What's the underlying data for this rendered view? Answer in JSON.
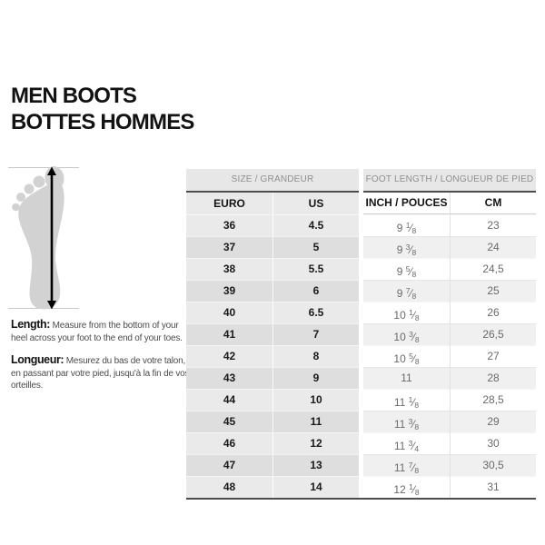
{
  "title": {
    "line1": "MEN BOOTS",
    "line2": "BOTTES HOMMES"
  },
  "chart_data": {
    "type": "table",
    "title": "MEN BOOTS / BOTTES HOMMES",
    "group_headers": [
      "SIZE / GRANDEUR",
      "FOOT LENGTH / LONGUEUR DE PIED"
    ],
    "columns": [
      "EURO",
      "US",
      "INCH / POUCES",
      "CM"
    ],
    "rows": [
      [
        "36",
        "4.5",
        "9 1/8",
        "23"
      ],
      [
        "37",
        "5",
        "9 3/8",
        "24"
      ],
      [
        "38",
        "5.5",
        "9 5/8",
        "24,5"
      ],
      [
        "39",
        "6",
        "9 7/8",
        "25"
      ],
      [
        "40",
        "6.5",
        "10 1/8",
        "26"
      ],
      [
        "41",
        "7",
        "10 3/8",
        "26,5"
      ],
      [
        "42",
        "8",
        "10 5/8",
        "27"
      ],
      [
        "43",
        "9",
        "11",
        "28"
      ],
      [
        "44",
        "10",
        "11 1/8",
        "28,5"
      ],
      [
        "45",
        "11",
        "11 3/8",
        "29"
      ],
      [
        "46",
        "12",
        "11 3/4",
        "30"
      ],
      [
        "47",
        "13",
        "11 7/8",
        "30,5"
      ],
      [
        "48",
        "14",
        "12 1/8",
        "31"
      ]
    ]
  },
  "notes": [
    {
      "label": "Length:",
      "text": "Measure from the bottom of your heel across your foot to the end of your toes."
    },
    {
      "label": "Longueur:",
      "text": "Mesurez du bas de votre talon, en passant par votre pied, jusqu'à la fin de vos orteilles."
    }
  ],
  "diagram": {
    "icon": "foot-length-measure-arrow"
  },
  "colors": {
    "group_header_bg": "#e7e7e7",
    "group_header_text": "#8f8f8f",
    "rule_dark": "#4d4d4d",
    "left_light": "#eaeaea",
    "left_dark": "#dedede",
    "right_light": "#ffffff",
    "right_dark": "#f0f0f0",
    "left_text": "#1a1a1a",
    "right_text": "#6a6a6a",
    "foot_fill": "#d2d2d2",
    "guide_line": "#c9c9c9"
  }
}
